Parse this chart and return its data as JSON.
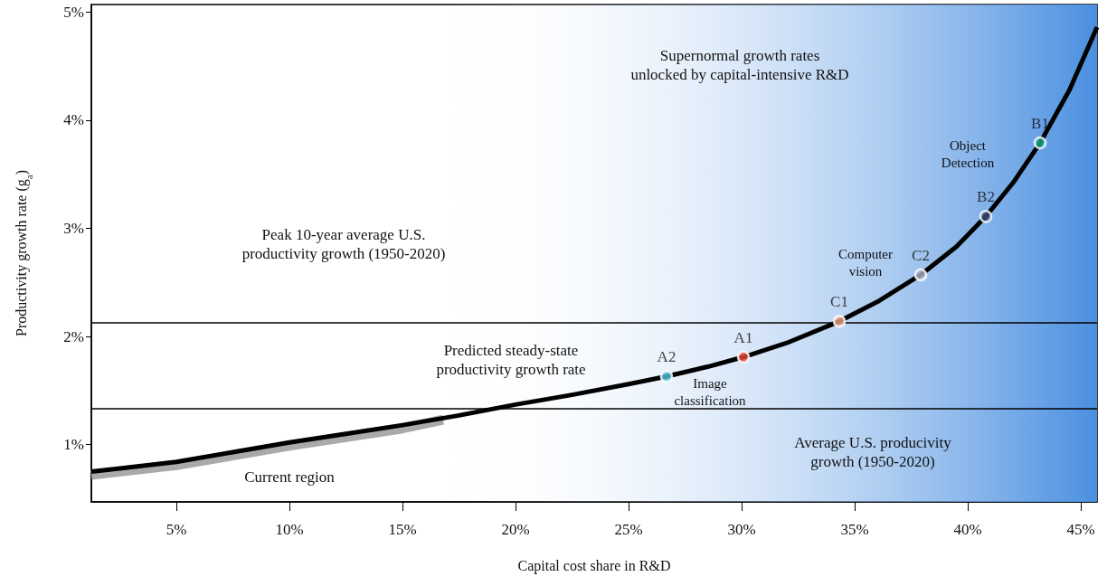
{
  "chart_data": {
    "type": "line",
    "xlabel": "Capital cost share in R&D",
    "ylabel": "Productivity growth rate (g$_{a}$)",
    "xlim": [
      1.24,
      45.72
    ],
    "ylim": [
      0.47,
      5.07
    ],
    "xticks": [
      {
        "value": 5,
        "label": "5%"
      },
      {
        "value": 10,
        "label": "10%"
      },
      {
        "value": 15,
        "label": "15%"
      },
      {
        "value": 20,
        "label": "20%"
      },
      {
        "value": 25,
        "label": "25%"
      },
      {
        "value": 30,
        "label": "30%"
      },
      {
        "value": 35,
        "label": "35%"
      },
      {
        "value": 40,
        "label": "40%"
      },
      {
        "value": 45,
        "label": "45%"
      }
    ],
    "yticks": [
      {
        "value": 1,
        "label": "1%"
      },
      {
        "value": 2,
        "label": "2%"
      },
      {
        "value": 3,
        "label": "3%"
      },
      {
        "value": 4,
        "label": "4%"
      },
      {
        "value": 5,
        "label": "5%"
      }
    ],
    "grid": false,
    "bands": [
      {
        "axis": "x",
        "from": 17,
        "to": 45.72,
        "color": "#4a8fe0"
      }
    ],
    "ref_lines": [
      {
        "axis": "y",
        "value": 2.125,
        "color": "#000000"
      },
      {
        "axis": "y",
        "value": 1.334,
        "color": "#000000"
      }
    ],
    "series": [
      {
        "color": "#aaaaaa",
        "marker": "none",
        "x": [
          1.24,
          5,
          7.5,
          10,
          12.5,
          15,
          16.8
        ],
        "values": [
          0.72,
          0.81,
          0.9,
          0.99,
          1.07,
          1.15,
          1.23
        ]
      },
      {
        "color": "#000000",
        "marker": "none",
        "x": [
          1.24,
          2.5,
          5,
          7.5,
          10,
          12.5,
          15,
          17.5,
          20,
          22.5,
          25,
          26.68,
          28.5,
          30.08,
          32,
          34.32,
          36,
          37.92,
          39.5,
          40.8,
          42,
          43.2,
          44.5,
          45.72
        ],
        "values": [
          0.75,
          0.78,
          0.84,
          0.93,
          1.02,
          1.1,
          1.18,
          1.27,
          1.37,
          1.46,
          1.56,
          1.63,
          1.72,
          1.81,
          1.94,
          2.14,
          2.32,
          2.57,
          2.83,
          3.11,
          3.42,
          3.79,
          4.28,
          4.86
        ]
      },
      {
        "type": "scatter",
        "name": "A2",
        "color": "#4fc3d9",
        "marker": "circle",
        "x": [
          26.68
        ],
        "values": [
          1.63
        ]
      },
      {
        "type": "scatter",
        "name": "A1",
        "color": "#e8483a",
        "marker": "circle",
        "x": [
          30.08
        ],
        "values": [
          1.81
        ]
      },
      {
        "type": "scatter",
        "name": "C1",
        "color": "#f4a582",
        "marker": "circle",
        "x": [
          34.32
        ],
        "values": [
          2.14
        ]
      },
      {
        "type": "scatter",
        "name": "C2",
        "color": "#b0b0c8",
        "marker": "circle",
        "x": [
          37.92
        ],
        "values": [
          2.57
        ]
      },
      {
        "type": "scatter",
        "name": "B2",
        "color": "#3d4a7a",
        "marker": "circle",
        "x": [
          40.8
        ],
        "values": [
          3.11
        ]
      },
      {
        "type": "scatter",
        "name": "B1",
        "color": "#1aa88a",
        "marker": "circle",
        "x": [
          43.2
        ],
        "values": [
          3.79
        ]
      }
    ],
    "annotations": [
      "Supernormal growth rates\nunlocked by capital-intensive R&D",
      "Peak 10-year average U.S.\nproductivity growth (1950-2020)",
      "Predicted steady-state\nproductivity growth rate",
      "Image\nclassification",
      "Computer\nvision",
      "Object\nDetection",
      "Average U.S. producivity\ngrowth (1950-2020)",
      "Current region"
    ]
  }
}
